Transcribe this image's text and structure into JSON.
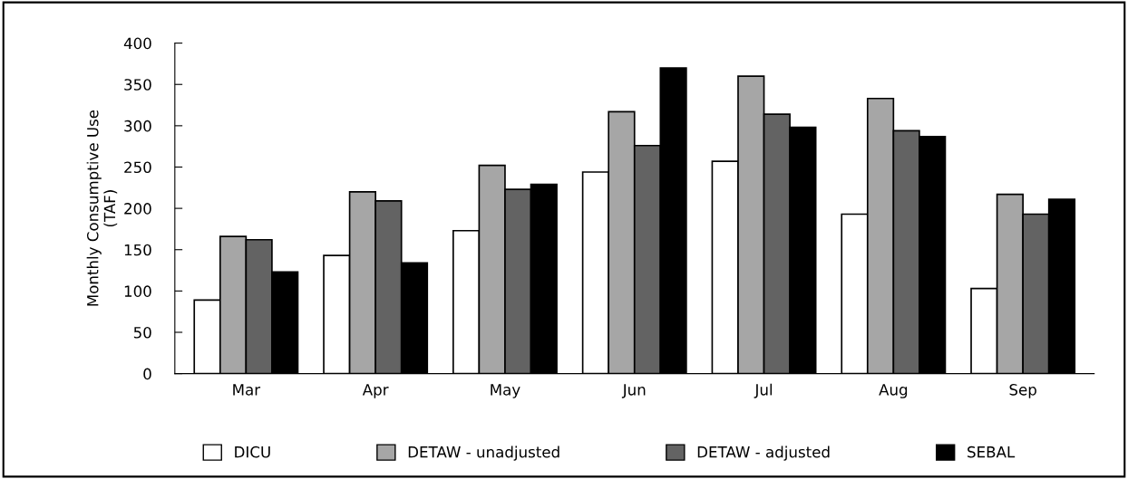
{
  "chart_data": {
    "type": "bar",
    "ylabel": "Monthly Consumptive Use\n(TAF)",
    "categories": [
      "Mar",
      "Apr",
      "May",
      "Jun",
      "Jul",
      "Aug",
      "Sep"
    ],
    "series": [
      {
        "name": "DICU",
        "color": "#ffffff",
        "values": [
          89,
          143,
          173,
          244,
          257,
          193,
          103
        ]
      },
      {
        "name": "DETAW - unadjusted",
        "color": "#a6a6a6",
        "values": [
          166,
          220,
          252,
          317,
          360,
          333,
          217
        ]
      },
      {
        "name": "DETAW - adjusted",
        "color": "#636363",
        "values": [
          162,
          209,
          223,
          276,
          314,
          294,
          193
        ]
      },
      {
        "name": "SEBAL",
        "color": "#000000",
        "values": [
          123,
          134,
          229,
          370,
          298,
          287,
          211
        ]
      }
    ],
    "ylim": [
      0,
      400
    ],
    "yticks": [
      0,
      50,
      100,
      150,
      200,
      250,
      300,
      350,
      400
    ],
    "grid": false,
    "legend": "bottom"
  }
}
